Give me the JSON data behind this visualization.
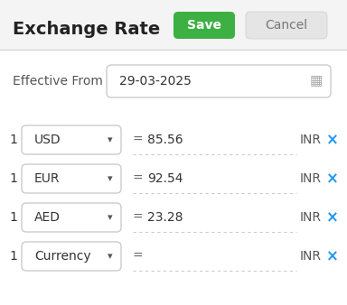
{
  "title": "Exchange Rate",
  "save_btn_text": "Save",
  "cancel_btn_text": "Cancel",
  "effective_from_label": "Effective From",
  "effective_from_date": "29-03-2025",
  "rows": [
    {
      "num": "1",
      "currency": "USD",
      "value": "85.56"
    },
    {
      "num": "1",
      "currency": "EUR",
      "value": "92.54"
    },
    {
      "num": "1",
      "currency": "AED",
      "value": "23.28"
    },
    {
      "num": "1",
      "currency": "Currency",
      "value": ""
    }
  ],
  "inr_label": "INR",
  "bg_color": "#f4f4f4",
  "panel_bg": "#ffffff",
  "divider_color": "#d8d8d8",
  "save_btn_color": "#3cb043",
  "save_btn_text_color": "#ffffff",
  "cancel_btn_color": "#e5e5e5",
  "cancel_btn_text_color": "#777777",
  "title_color": "#222222",
  "label_color": "#555555",
  "box_border_color": "#cccccc",
  "x_color": "#2196F3",
  "inr_color": "#555555",
  "date_color": "#333333",
  "equal_color": "#666666",
  "num_color": "#333333",
  "currency_color": "#333333",
  "dashed_line_color": "#cccccc",
  "calendar_color": "#aaaaaa"
}
